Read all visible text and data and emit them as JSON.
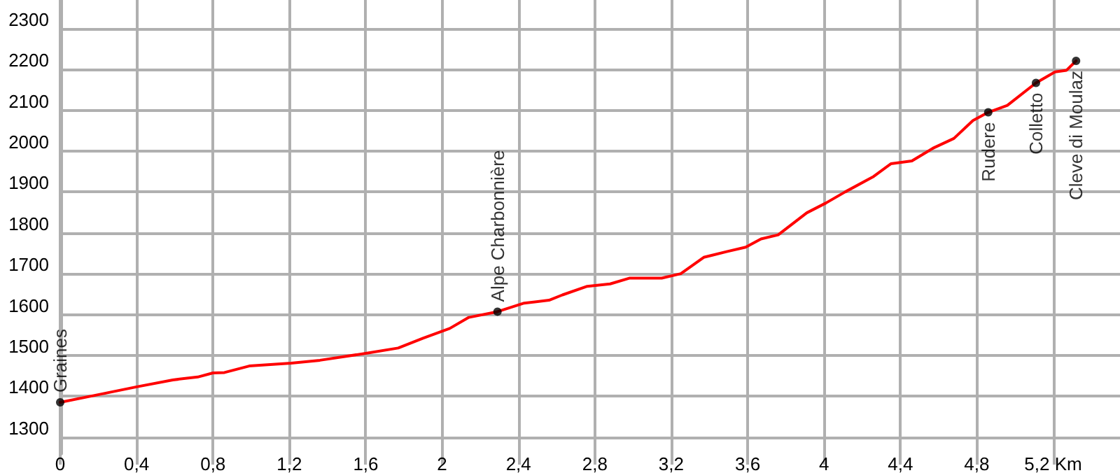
{
  "chart_data": {
    "type": "line",
    "xlim": [
      0,
      5.55
    ],
    "ylim": [
      1260,
      2370
    ],
    "xticks": [
      0,
      {
        "value": 0.4,
        "label": "0,4"
      },
      {
        "value": 0.8,
        "label": "0,8"
      },
      {
        "value": 1.2,
        "label": "1,2"
      },
      {
        "value": 1.6,
        "label": "1,6"
      },
      2,
      {
        "value": 2.4,
        "label": "2,4"
      },
      {
        "value": 2.8,
        "label": "2,8"
      },
      {
        "value": 3.2,
        "label": "3,2"
      },
      {
        "value": 3.6,
        "label": "3,6"
      },
      4,
      {
        "value": 4.4,
        "label": "4,4"
      },
      {
        "value": 4.8,
        "label": "4,8"
      },
      {
        "value": 5.2,
        "label": "5,2 Km"
      }
    ],
    "yticks": [
      1300,
      1400,
      1500,
      1600,
      1700,
      1800,
      1900,
      2000,
      2100,
      2200,
      2300
    ],
    "grid": true,
    "marker": "none",
    "line_style": "solid",
    "x": [
      0,
      0.18,
      0.4,
      0.59,
      0.72,
      0.8,
      0.86,
      0.99,
      1.21,
      1.36,
      1.6,
      1.77,
      1.9,
      2.04,
      2.14,
      2.29,
      2.43,
      2.56,
      2.63,
      2.76,
      2.88,
      2.98,
      3.15,
      3.25,
      3.37,
      3.49,
      3.59,
      3.67,
      3.76,
      3.91,
      4.01,
      4.11,
      4.26,
      4.35,
      4.46,
      4.57,
      4.68,
      4.78,
      4.86,
      4.96,
      5.11,
      5.21,
      5.27,
      5.32
    ],
    "series": [
      {
        "color": "#ff0000",
        "values": [
          1385,
          1402,
          1423,
          1440,
          1447,
          1457,
          1458,
          1474,
          1481,
          1488,
          1505,
          1518,
          1542,
          1566,
          1593,
          1607,
          1628,
          1635,
          1648,
          1669,
          1675,
          1689,
          1689,
          1700,
          1740,
          1754,
          1765,
          1785,
          1795,
          1849,
          1873,
          1900,
          1938,
          1969,
          1976,
          2007,
          2031,
          2075,
          2095,
          2112,
          2167,
          2194,
          2198,
          2221
        ]
      }
    ],
    "annotations": [
      {
        "text": "Graines",
        "x": 0,
        "y": 1385
      },
      {
        "text": "Alpe Charbonnière",
        "x": 2.29,
        "y": 1607
      },
      {
        "text": "Rudere",
        "x": 4.86,
        "y": 2095
      },
      {
        "text": "Colletto",
        "x": 5.11,
        "y": 2167
      },
      {
        "text": "Cleve di Moulaz",
        "x": 5.32,
        "y": 2221
      }
    ]
  }
}
